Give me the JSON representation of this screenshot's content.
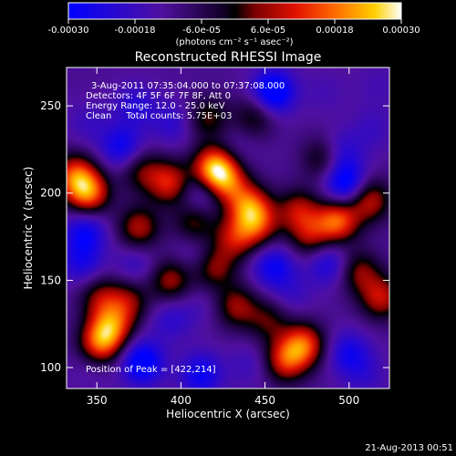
{
  "chart_data": {
    "type": "heatmap",
    "title": "Reconstructed RHESSI Image",
    "xlabel": "Heliocentric X (arcsec)",
    "ylabel": "Heliocentric Y (arcsec)",
    "xlim": [
      332,
      524
    ],
    "ylim": [
      88,
      272
    ],
    "x_ticks": [
      350,
      400,
      450,
      500
    ],
    "y_ticks": [
      100,
      150,
      200,
      250
    ],
    "colorbar": {
      "min": -0.0003,
      "max": 0.0003,
      "ticks": [
        "-0.00030",
        "-0.00018",
        "-6.0e-05",
        "6.0e-05",
        "0.00018",
        "0.00030"
      ],
      "tick_values": [
        -0.0003,
        -0.00018,
        -6e-05,
        6e-05,
        0.00018,
        0.0003
      ],
      "unit": "(photons cm⁻² s⁻¹ asec⁻²)",
      "colormap": "blue-black-red-yellow-white"
    },
    "annotations": [
      "3-Aug-2011 07:35:04.000 to 07:37:08.000",
      "Detectors: 4F 5F 6F 7F 8F, Att 0",
      "Energy Range: 12.0 - 25.0 keV",
      "Clean     Total counts: 5.75E+03"
    ],
    "peak_label": "Position of Peak = [422,214]",
    "peak": [
      422,
      214
    ],
    "blobs": [
      {
        "x": 420,
        "y": 214,
        "value": 0.0003
      },
      {
        "x": 393,
        "y": 206,
        "value": 0.00016
      },
      {
        "x": 428,
        "y": 205,
        "value": 0.00014
      },
      {
        "x": 441,
        "y": 192,
        "value": 0.0002
      },
      {
        "x": 446,
        "y": 181,
        "value": 0.00012
      },
      {
        "x": 432,
        "y": 174,
        "value": 0.00012
      },
      {
        "x": 408,
        "y": 183,
        "value": 9e-05
      },
      {
        "x": 375,
        "y": 180,
        "value": 0.00013
      },
      {
        "x": 345,
        "y": 200,
        "value": 0.00022
      },
      {
        "x": 337,
        "y": 210,
        "value": 0.00018
      },
      {
        "x": 352,
        "y": 140,
        "value": 9e-05
      },
      {
        "x": 359,
        "y": 124,
        "value": 0.00017
      },
      {
        "x": 352,
        "y": 114,
        "value": 0.0002
      },
      {
        "x": 369,
        "y": 138,
        "value": 9e-05
      },
      {
        "x": 394,
        "y": 150,
        "value": 0.00012
      },
      {
        "x": 420,
        "y": 157,
        "value": 0.0001
      },
      {
        "x": 433,
        "y": 135,
        "value": 0.00011
      },
      {
        "x": 452,
        "y": 127,
        "value": 7e-05
      },
      {
        "x": 473,
        "y": 113,
        "value": 0.0002
      },
      {
        "x": 462,
        "y": 104,
        "value": 0.00016
      },
      {
        "x": 470,
        "y": 190,
        "value": 0.00012
      },
      {
        "x": 477,
        "y": 175,
        "value": 0.0001
      },
      {
        "x": 493,
        "y": 184,
        "value": 0.00022
      },
      {
        "x": 512,
        "y": 196,
        "value": 0.00015
      },
      {
        "x": 506,
        "y": 155,
        "value": 0.0001
      },
      {
        "x": 519,
        "y": 140,
        "value": 0.00014
      },
      {
        "x": 444,
        "y": 244,
        "value": 7e-05
      },
      {
        "x": 485,
        "y": 220,
        "value": 9e-05
      },
      {
        "x": 416,
        "y": 243,
        "value": 8e-05
      },
      {
        "x": 376,
        "y": 213,
        "value": 8e-05
      },
      {
        "x": 365,
        "y": 226,
        "value": -0.00022
      },
      {
        "x": 395,
        "y": 240,
        "value": -0.00015
      },
      {
        "x": 373,
        "y": 250,
        "value": -0.00016
      },
      {
        "x": 455,
        "y": 258,
        "value": -0.0003
      },
      {
        "x": 413,
        "y": 200,
        "value": -0.00018
      },
      {
        "x": 432,
        "y": 226,
        "value": -0.0001
      },
      {
        "x": 498,
        "y": 205,
        "value": -0.00028
      },
      {
        "x": 495,
        "y": 223,
        "value": -0.00018
      },
      {
        "x": 514,
        "y": 237,
        "value": -0.00012
      },
      {
        "x": 343,
        "y": 178,
        "value": -0.00022
      },
      {
        "x": 341,
        "y": 160,
        "value": -0.00018
      },
      {
        "x": 373,
        "y": 159,
        "value": -0.00014
      },
      {
        "x": 407,
        "y": 166,
        "value": -0.00012
      },
      {
        "x": 455,
        "y": 158,
        "value": -0.00022
      },
      {
        "x": 488,
        "y": 160,
        "value": -0.0002
      },
      {
        "x": 466,
        "y": 142,
        "value": -0.00012
      },
      {
        "x": 394,
        "y": 128,
        "value": -0.00015
      },
      {
        "x": 412,
        "y": 136,
        "value": -0.0001
      },
      {
        "x": 377,
        "y": 103,
        "value": -0.00028
      },
      {
        "x": 412,
        "y": 96,
        "value": -0.00022
      },
      {
        "x": 441,
        "y": 102,
        "value": -0.00012
      },
      {
        "x": 500,
        "y": 108,
        "value": -0.0002
      },
      {
        "x": 510,
        "y": 95,
        "value": -0.00012
      },
      {
        "x": 345,
        "y": 240,
        "value": -0.00012
      },
      {
        "x": 517,
        "y": 262,
        "value": -0.0001
      },
      {
        "x": 486,
        "y": 258,
        "value": -0.0001
      },
      {
        "x": 347,
        "y": 100,
        "value": -0.0001
      }
    ]
  },
  "footer": {
    "timestamp": "21-Aug-2013 00:51"
  }
}
